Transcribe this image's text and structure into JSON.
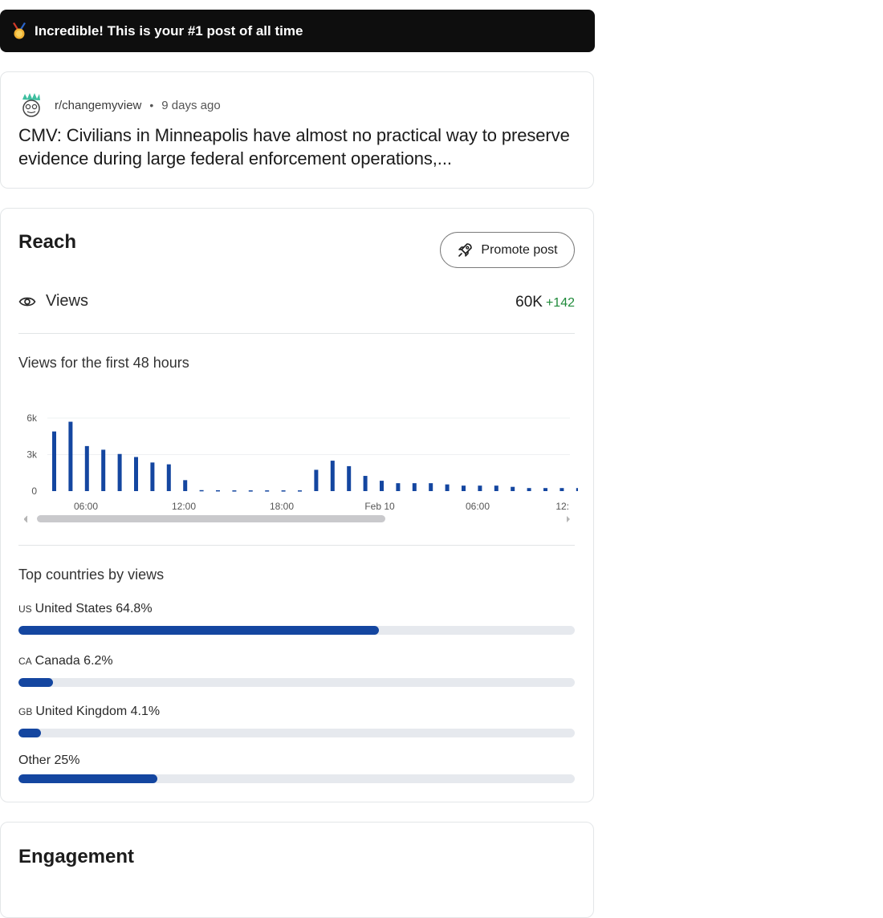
{
  "banner": {
    "icon": "medal-icon",
    "text": "Incredible! This is your #1 post of all time"
  },
  "post": {
    "icon": "subreddit-avatar-icon",
    "subreddit": "r/changemyview",
    "separator": "•",
    "time_ago": "9 days ago",
    "title": "CMV: Civilians in Minneapolis have almost no practical way to preserve evidence during large federal enforcement operations,..."
  },
  "reach": {
    "heading": "Reach",
    "promote_label": "Promote post",
    "views_label": "Views",
    "views_value": "60K",
    "views_delta": "+142",
    "chart_heading": "Views for the first 48 hours",
    "countries_heading": "Top countries by views",
    "countries": [
      {
        "code": "US",
        "name": "United States",
        "pct_label": "64.8%",
        "fraction": 0.648
      },
      {
        "code": "CA",
        "name": "Canada",
        "pct_label": "6.2%",
        "fraction": 0.062
      },
      {
        "code": "GB",
        "name": "United Kingdom",
        "pct_label": "4.1%",
        "fraction": 0.041
      },
      {
        "code": "",
        "name": "Other",
        "pct_label": "25%",
        "fraction": 0.25
      }
    ]
  },
  "engagement": {
    "heading": "Engagement"
  },
  "colors": {
    "bar": "#1446a0",
    "delta": "#1f8a3a",
    "banner_bg": "#0e0e0e"
  },
  "chart_data": {
    "type": "bar",
    "y_tick_labels": [
      "6k",
      "3k",
      "0"
    ],
    "y_ticks": [
      6000,
      3000,
      0
    ],
    "ylim": [
      0,
      6000
    ],
    "x_tick_labels": [
      "06:00",
      "12:00",
      "18:00",
      "Feb 10",
      "06:00",
      "12:"
    ],
    "values": [
      4900,
      5700,
      3700,
      3400,
      3050,
      2800,
      2350,
      2200,
      900,
      80,
      70,
      60,
      60,
      60,
      60,
      60,
      1750,
      2500,
      2050,
      1250,
      850,
      650,
      650,
      650,
      550,
      450,
      450,
      450,
      350,
      250,
      250,
      250,
      250,
      250
    ],
    "grid": true
  }
}
